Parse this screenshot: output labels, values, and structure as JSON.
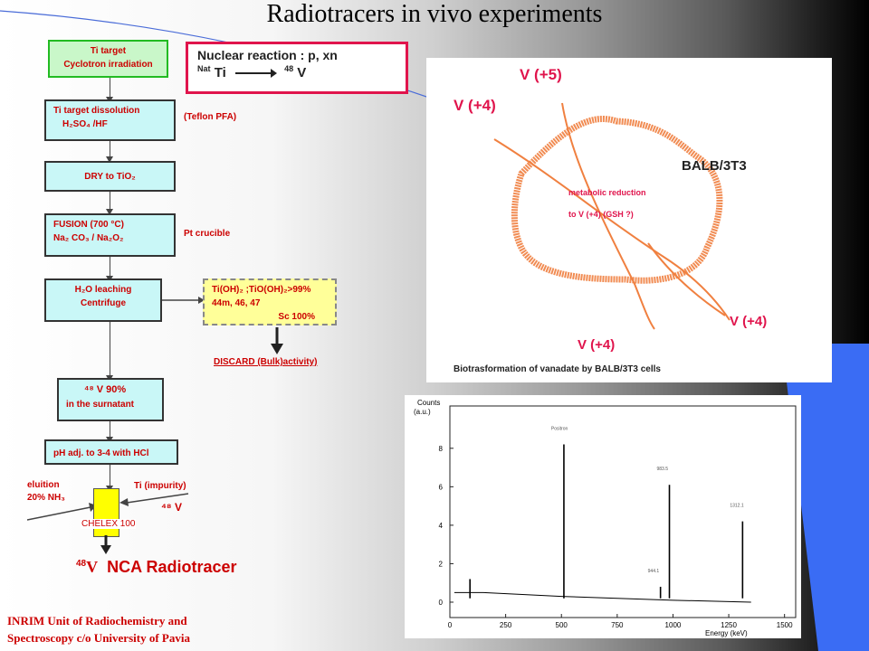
{
  "title": "Radiotracers  in vivo experiments",
  "reaction": {
    "heading": "Nuclear reaction : p, xn",
    "target_sup": "Nat",
    "target": "Ti",
    "product_sup": "48",
    "product": "V"
  },
  "flow": {
    "step1_l1": "Ti target",
    "step1_l2": "Cyclotron irradiation",
    "step2_l1": "Ti target dissolution",
    "step2_l2": "H₂SO₄ /HF",
    "step2_note": "(Teflon PFA)",
    "step3": "DRY to TiO₂",
    "step4_l1": "FUSION  (700 °C)",
    "step4_l2": "Na₂ CO₃  /  Na₂O₂",
    "step4_note": "Pt crucible",
    "step5_l1": "H₂O  leaching",
    "step5_l2": "Centrifuge",
    "side_l1": "Ti(OH)₂ ;TiO(OH)₂>99%",
    "side_l2": "44m, 46, 47",
    "side_l3": "Sc 100%",
    "discard": "DISCARD  (Bulk)activity)",
    "step6_l1": "⁴⁸ V   90%",
    "step6_l2": "in the surnatant",
    "step7": "pH adj. to 3-4 with HCl",
    "elution_l1": "eluition",
    "elution_l2": "20% NH₃",
    "impurity": "Ti (impurity)",
    "v48": "⁴⁸ V",
    "column": "CHELEX 100",
    "final_sup": "48",
    "final_v": "V",
    "final_text": "NCA Radiotracer"
  },
  "bio_panel": {
    "label_v5": "V (+5)",
    "label_v4_top": "V (+4)",
    "label_cell": "BALB/3T3",
    "reduction_l1": "metabolic reduction",
    "reduction_l2": "to   V (+4)  (GSH ?)",
    "label_v4_right": "V (+4)",
    "label_v4_bottom": "V (+4)",
    "caption": "Biotrasformation of vanadate by BALB/3T3 cells"
  },
  "footer": {
    "line1": "INRIM Unit of Radiochemistry and",
    "line2": "Spectroscopy c/o University of Pavia"
  },
  "chart_data": {
    "type": "line",
    "ylabel_l1": "Counts",
    "ylabel_l2": "(a.u.)",
    "xlabel": "Energy (keV)",
    "xlim": [
      0,
      1550
    ],
    "ylim": [
      -0.8,
      10.2
    ],
    "xticks": [
      0,
      250,
      500,
      750,
      1000,
      1250,
      1500
    ],
    "yticks": [
      0,
      2,
      4,
      6,
      8
    ],
    "peaks": [
      {
        "x": 90,
        "y": 1.2
      },
      {
        "x": 511,
        "y": 8.2,
        "label": "Positron"
      },
      {
        "x": 944,
        "y": 0.8,
        "label": "944.1"
      },
      {
        "x": 984,
        "y": 6.1,
        "label": "983.5"
      },
      {
        "x": 1312,
        "y": 4.2,
        "label": "1312.1"
      }
    ],
    "baseline": [
      {
        "x": 20,
        "y": 0.5
      },
      {
        "x": 150,
        "y": 0.5
      },
      {
        "x": 500,
        "y": 0.3
      },
      {
        "x": 1000,
        "y": 0.1
      },
      {
        "x": 1350,
        "y": 0.0
      }
    ]
  }
}
